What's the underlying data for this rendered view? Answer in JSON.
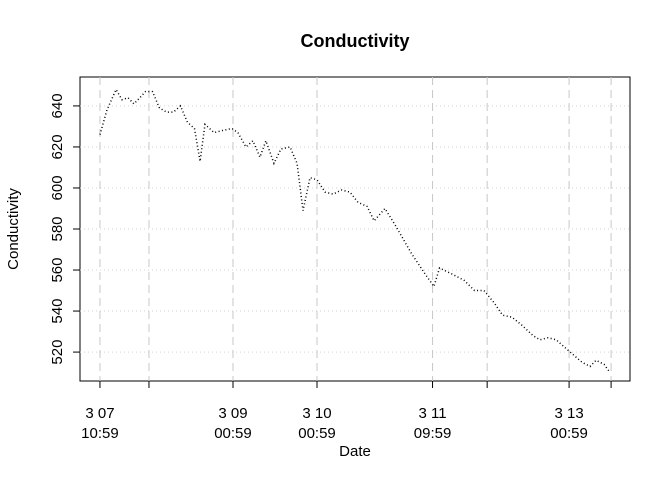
{
  "chart_data": {
    "type": "line",
    "title": "Conductivity",
    "x_label": "Date",
    "y_label": "Conductivity",
    "x": [
      0,
      2,
      4.6,
      6.3,
      8,
      9.7,
      11.4,
      13,
      15,
      17,
      19,
      21,
      23,
      25,
      27,
      28.6,
      30,
      32.6,
      35,
      37.7,
      39.4,
      41.7,
      43.7,
      45.7,
      47.4,
      49.7,
      51.7,
      54.3,
      56.3,
      58,
      60,
      62,
      64.3,
      66.6,
      69,
      71.4,
      73.7,
      76.3,
      78.3,
      81.4,
      84.3,
      89,
      92.9,
      95.4,
      97,
      100.6,
      104,
      107,
      109.7,
      112.6,
      115,
      117.7,
      120.6,
      123.7,
      125.7,
      128,
      130.3,
      132.3,
      135,
      137.7,
      140,
      141.7,
      144,
      145.7
    ],
    "series": [
      {
        "name": "Conductivity",
        "color": "#000000",
        "values": [
          626,
          638,
          648,
          643,
          644,
          641,
          644,
          647,
          647,
          639,
          637,
          637,
          640,
          632,
          629,
          613,
          631,
          627,
          628,
          629,
          627,
          620,
          623,
          615,
          623,
          612,
          619,
          620,
          612,
          589,
          605,
          604,
          598,
          597,
          599,
          598,
          593,
          591,
          584,
          590,
          582,
          568,
          558,
          552,
          561,
          558,
          555,
          550,
          550,
          544,
          538,
          537,
          533,
          528,
          526,
          527,
          526,
          523,
          519,
          515,
          513,
          516,
          514,
          510
        ]
      }
    ],
    "xlim": [
      -5.7,
      151.4
    ],
    "xticks": [
      {
        "value": 0,
        "label": "3 07\n10:59"
      },
      {
        "value": 14,
        "label": null
      },
      {
        "value": 38,
        "label": "3 09\n00:59"
      },
      {
        "value": 62,
        "label": "3 10\n00:59"
      },
      {
        "value": 95,
        "label": "3 11\n09:59"
      },
      {
        "value": 110.6,
        "label": null
      },
      {
        "value": 134,
        "label": "3 13\n00:59"
      },
      {
        "value": 146,
        "label": null
      }
    ],
    "ylim": [
      505.9,
      654.1
    ],
    "yticks": [
      520,
      540,
      560,
      580,
      600,
      620,
      640
    ],
    "grid": true
  }
}
